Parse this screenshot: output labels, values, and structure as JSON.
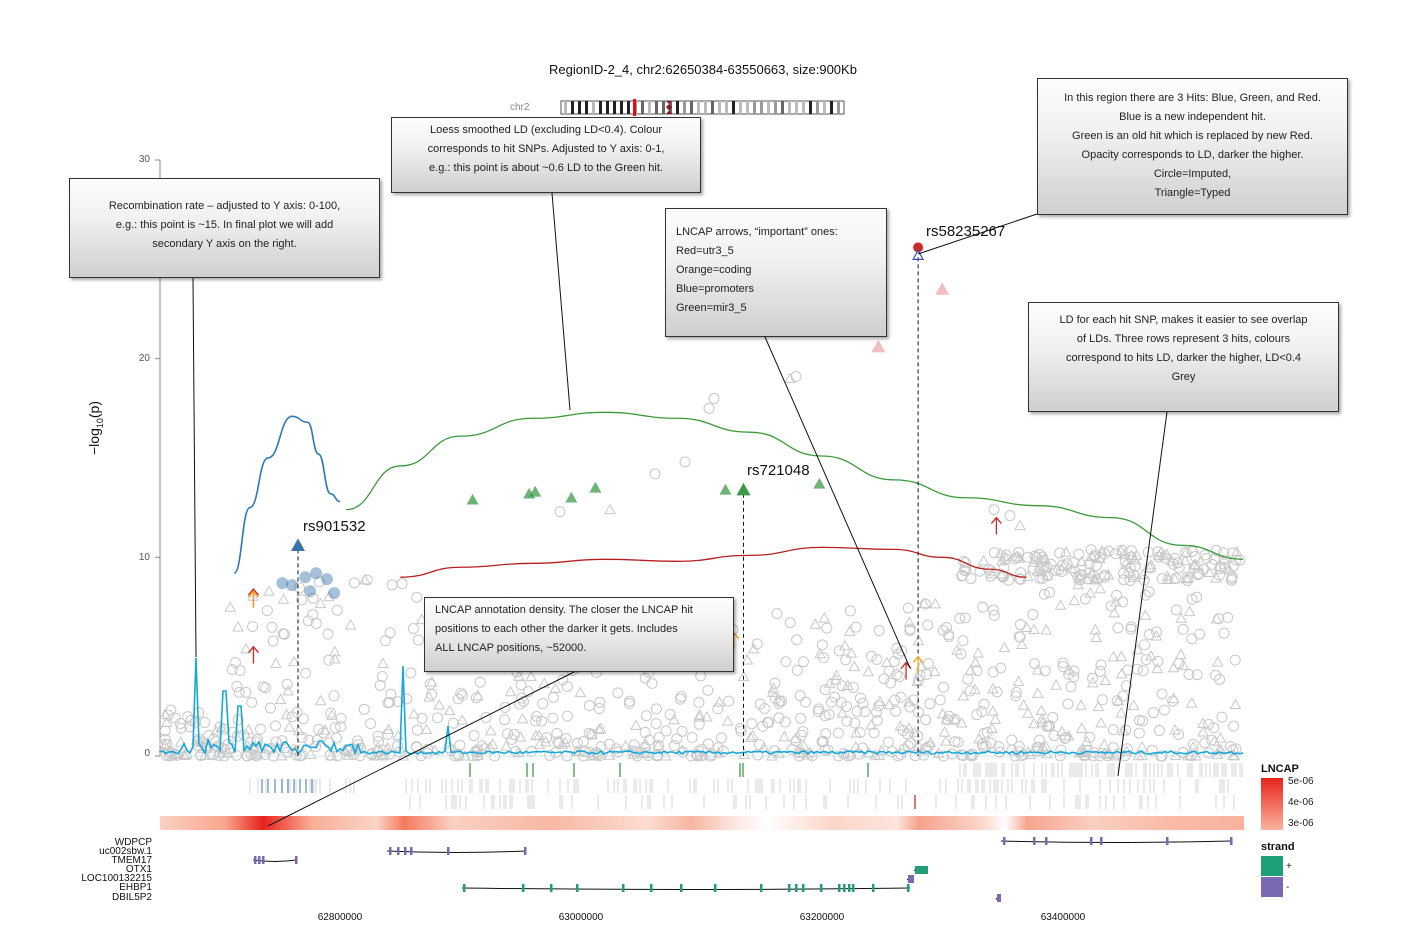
{
  "title": "RegionID-2_4, chr2:62650384-63550663, size:900Kb",
  "chromosome_label": "chr2",
  "y_axis_label": "−log",
  "y_axis_label_sub": "10",
  "y_axis_label_tail": "(p)",
  "colors": {
    "blue_hit": "#3a73a8",
    "green_hit": "#3e9a4a",
    "red_hit": "#cc2b2b",
    "recomb": "#2f78b8",
    "ld_green": "#3c9a3c",
    "ld_red": "#b52020",
    "density_peak": "#e8231c",
    "strand_plus": "#1f9e7a",
    "strand_minus": "#7a69b0",
    "grey_point": "#c8c8c8",
    "lncap_line": "#18a8d8"
  },
  "callouts": {
    "recomb": [
      "Recombination rate – adjusted to Y axis: 0-100,",
      "e.g.: this point is ~15. In final plot we will add",
      "secondary Y axis on the right."
    ],
    "loess": [
      "Loess smoothed LD (excluding LD<0.4). Colour",
      "corresponds to hit SNPs. Adjusted to Y axis: 0-1,",
      "e.g.: this point is about ~0.6 LD to the Green hit."
    ],
    "arrows": [
      "LNCAP arrows, “important” ones:",
      "Red=utr3_5",
      "Orange=coding",
      "Blue=promoters",
      "Green=mir3_5"
    ],
    "hits": [
      "In this region there are 3 Hits: Blue, Green, and Red.",
      "Blue is a new independent hit.",
      "Green is an old hit which is replaced by new Red.",
      "Opacity corresponds to LD, darker the higher.",
      "Circle=Imputed,",
      "Triangle=Typed"
    ],
    "ld_rows": [
      "LD for each hit SNP, makes it easier to see overlap",
      "of LDs. Three rows represent 3 hits, colours",
      "correspond to hits LD, darker the higher, LD<0.4",
      "Grey"
    ],
    "density": [
      "LNCAP annotation density. The closer the LNCAP hit",
      "positions to each other the darker it gets. Includes",
      "ALL LNCAP positions, ~52000."
    ]
  },
  "legend": {
    "lncap_title": "LNCAP",
    "lncap_values": [
      "5e-06",
      "4e-06",
      "3e-06"
    ],
    "strand_title": "strand",
    "strand_values": [
      "+",
      "-"
    ]
  },
  "genes": [
    "WDPCP",
    "uc002sbw.1",
    "TMEM17",
    "OTX1",
    "LOC100132215",
    "EHBP1",
    "DBIL5P2"
  ],
  "chart_data": {
    "type": "scatter",
    "title": "RegionID-2_4, chr2:62650384-63550663, size:900Kb",
    "xlabel": "",
    "ylabel": "−log10(p)",
    "xlim": [
      62650384,
      63550663
    ],
    "ylim": [
      0,
      30
    ],
    "x_ticks": [
      62800000,
      63000000,
      63200000,
      63400000
    ],
    "x_tick_labels": [
      "62800000",
      "63000000",
      "63200000",
      "63400000"
    ],
    "y_ticks": [
      0,
      10,
      20,
      30
    ],
    "y_tick_labels": [
      "0",
      "10",
      "20",
      "30"
    ],
    "grid": false,
    "legend_position": "right",
    "hits": [
      {
        "label": "rs901532",
        "color": "blue",
        "x": 62765000,
        "y": 10.6
      },
      {
        "label": "rs721048",
        "color": "green",
        "x": 63135000,
        "y": 13.4
      },
      {
        "label": "rs58235267",
        "color": "red",
        "x": 63280000,
        "y": 25.3
      }
    ],
    "green_hit_points": [
      {
        "x": 62910000,
        "y": 12.9
      },
      {
        "x": 62957000,
        "y": 13.2
      },
      {
        "x": 62962000,
        "y": 13.3
      },
      {
        "x": 62992000,
        "y": 13.0
      },
      {
        "x": 63012000,
        "y": 13.5
      },
      {
        "x": 63120000,
        "y": 13.4
      },
      {
        "x": 63198000,
        "y": 13.7
      }
    ],
    "blue_hit_points": [
      {
        "x": 62752000,
        "y": 8.7
      },
      {
        "x": 62760000,
        "y": 8.6
      },
      {
        "x": 62771000,
        "y": 9.0
      },
      {
        "x": 62780000,
        "y": 9.2
      },
      {
        "x": 62789000,
        "y": 8.9
      },
      {
        "x": 62795000,
        "y": 8.2
      },
      {
        "x": 62775000,
        "y": 8.3
      }
    ],
    "red_hit_points": [
      {
        "x": 63300000,
        "y": 23.5
      },
      {
        "x": 63247000,
        "y": 20.6
      }
    ],
    "lncap_arrows": [
      {
        "x": 62728000,
        "y": 8.0,
        "type": "utr3_5"
      },
      {
        "x": 62728000,
        "y": 7.9,
        "type": "coding"
      },
      {
        "x": 62728000,
        "y": 5.1,
        "type": "utr3_5"
      },
      {
        "x": 63127000,
        "y": 5.8,
        "type": "coding"
      },
      {
        "x": 63270000,
        "y": 4.3,
        "type": "utr3_5"
      },
      {
        "x": 63280000,
        "y": 4.6,
        "type": "coding"
      },
      {
        "x": 63345000,
        "y": 11.6,
        "type": "utr3_5"
      }
    ],
    "recombination": {
      "x": [
        62712000,
        62725000,
        62740000,
        62760000,
        62773000,
        62782000,
        62792000,
        62800000
      ],
      "y": [
        9.2,
        12.5,
        15.0,
        17.1,
        16.8,
        15.2,
        13.2,
        12.8
      ]
    },
    "ld_loess": [
      {
        "hit": "green",
        "x": [
          62805000,
          62850000,
          62900000,
          62960000,
          63020000,
          63080000,
          63140000,
          63200000,
          63260000,
          63320000,
          63380000,
          63440000,
          63500000,
          63550000
        ],
        "y": [
          12.4,
          14.6,
          16.1,
          17.0,
          17.3,
          17.0,
          16.3,
          15.1,
          13.9,
          13.0,
          12.6,
          12.0,
          10.6,
          9.9
        ]
      },
      {
        "hit": "red",
        "x": [
          62850000,
          62900000,
          62960000,
          63020000,
          63080000,
          63140000,
          63200000,
          63260000,
          63300000,
          63340000,
          63370000
        ],
        "y": [
          9.0,
          9.5,
          9.7,
          9.9,
          9.8,
          10.1,
          10.5,
          10.4,
          10.0,
          9.4,
          9.0
        ]
      }
    ]
  }
}
